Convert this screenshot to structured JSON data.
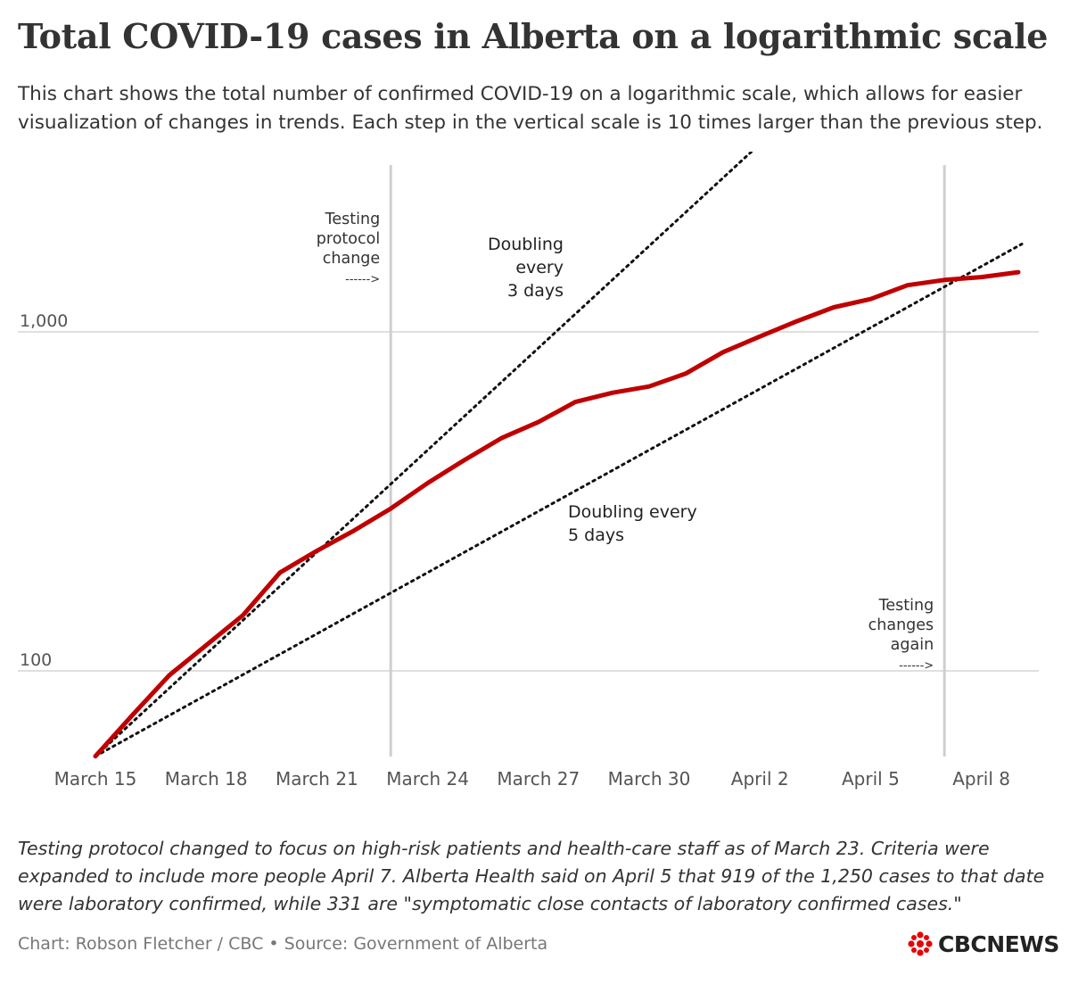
{
  "header": {
    "title": "Total COVID-19 cases in Alberta on a logarithmic scale",
    "subtitle": "This chart shows the total number of confirmed COVID-19 on a logarithmic scale, which allows for easier visualization of changes in trends. Each step in the vertical scale is 10 times larger than the previous step."
  },
  "footer": {
    "note": "Testing protocol changed to focus on high-risk patients and health-care staff as of March 23.  Criteria were expanded to include more people April 7. Alberta Health said on April 5 that 919 of the 1,250 cases to that date were laboratory confirmed, while 331 are \"symptomatic close contacts of laboratory confirmed cases.\"",
    "credit": "Chart: Robson Fletcher / CBC • Source: Government of Alberta",
    "logo_text": "CBCNEWS"
  },
  "chart_data": {
    "type": "line",
    "title": "Total COVID-19 cases in Alberta on a logarithmic scale",
    "y_scale": "log",
    "ylim": [
      45,
      2800
    ],
    "x_ticks": [
      "March 15",
      "March 18",
      "March 21",
      "March 24",
      "March 27",
      "March 30",
      "April 2",
      "April 5",
      "April 8"
    ],
    "y_ticks": [
      {
        "value": 100,
        "label": "100"
      },
      {
        "value": 1000,
        "label": "1,000"
      }
    ],
    "grid": true,
    "series": [
      {
        "color": "#c00000",
        "x": [
          "March 15",
          "March 16",
          "March 17",
          "March 18",
          "March 19",
          "March 20",
          "March 21",
          "March 22",
          "March 23",
          "March 24",
          "March 25",
          "March 26",
          "March 27",
          "March 28",
          "March 29",
          "March 30",
          "March 31",
          "April 1",
          "April 2",
          "April 3",
          "April 4",
          "April 5",
          "April 6",
          "April 7",
          "April 8",
          "April 9"
        ],
        "values": [
          56,
          74,
          97,
          119,
          146,
          195,
          226,
          259,
          301,
          358,
          419,
          486,
          542,
          621,
          661,
          690,
          754,
          871,
          969,
          1075,
          1181,
          1250,
          1373,
          1423,
          1451,
          1500
        ]
      }
    ],
    "reference_lines": [
      {
        "name": "Doubling every 3 days",
        "label": [
          "Doubling",
          "every",
          "3 days"
        ],
        "start_x": "March 15",
        "start_value": 56,
        "doubling_days": 3,
        "style": "dotted",
        "color": "#111111"
      },
      {
        "name": "Doubling every 5 days",
        "label": [
          "Doubling every",
          "5 days"
        ],
        "start_x": "March 15",
        "start_value": 56,
        "doubling_days": 5,
        "style": "dotted",
        "color": "#111111"
      }
    ],
    "annotations": [
      {
        "x": "March 23",
        "type": "vertical-line",
        "label": [
          "Testing",
          "protocol",
          "change",
          "------>"
        ]
      },
      {
        "x": "April 7",
        "type": "vertical-line",
        "label": [
          "Testing",
          "changes",
          "again",
          "------>"
        ]
      }
    ]
  }
}
